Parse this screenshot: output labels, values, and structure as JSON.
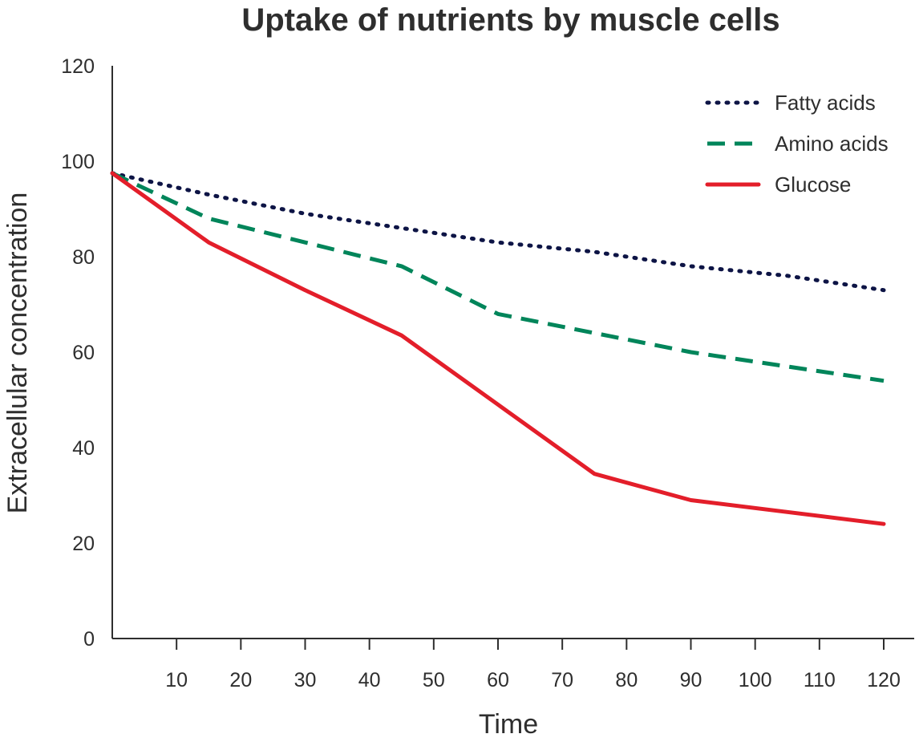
{
  "chart_data": {
    "type": "line",
    "title": "Uptake of nutrients by muscle cells",
    "xlabel": "Time",
    "ylabel": "Extracellular concentration",
    "xlim": [
      0,
      125
    ],
    "ylim": [
      0,
      120
    ],
    "xticks": [
      10,
      20,
      30,
      40,
      50,
      60,
      70,
      80,
      90,
      100,
      110,
      120
    ],
    "yticks": [
      0,
      20,
      40,
      60,
      80,
      100,
      120
    ],
    "grid": false,
    "legend_position": "top-right",
    "series": [
      {
        "name": "Fatty acids",
        "color": "#0d1445",
        "style": "dotted",
        "x": [
          0,
          15,
          30,
          45,
          60,
          75,
          90,
          105,
          120
        ],
        "y": [
          97.5,
          93,
          89,
          86,
          83,
          81,
          78,
          76,
          73
        ]
      },
      {
        "name": "Amino acids",
        "color": "#00855a",
        "style": "dashed",
        "x": [
          0,
          15,
          30,
          45,
          60,
          75,
          90,
          105,
          120
        ],
        "y": [
          97.5,
          88,
          83,
          78,
          68,
          64,
          60,
          57,
          54
        ]
      },
      {
        "name": "Glucose",
        "color": "#e31e2a",
        "style": "solid",
        "x": [
          0,
          15,
          30,
          45,
          60,
          75,
          90,
          105,
          120
        ],
        "y": [
          97.5,
          83,
          73,
          63.5,
          49,
          34.5,
          29,
          26.5,
          24
        ]
      }
    ]
  }
}
